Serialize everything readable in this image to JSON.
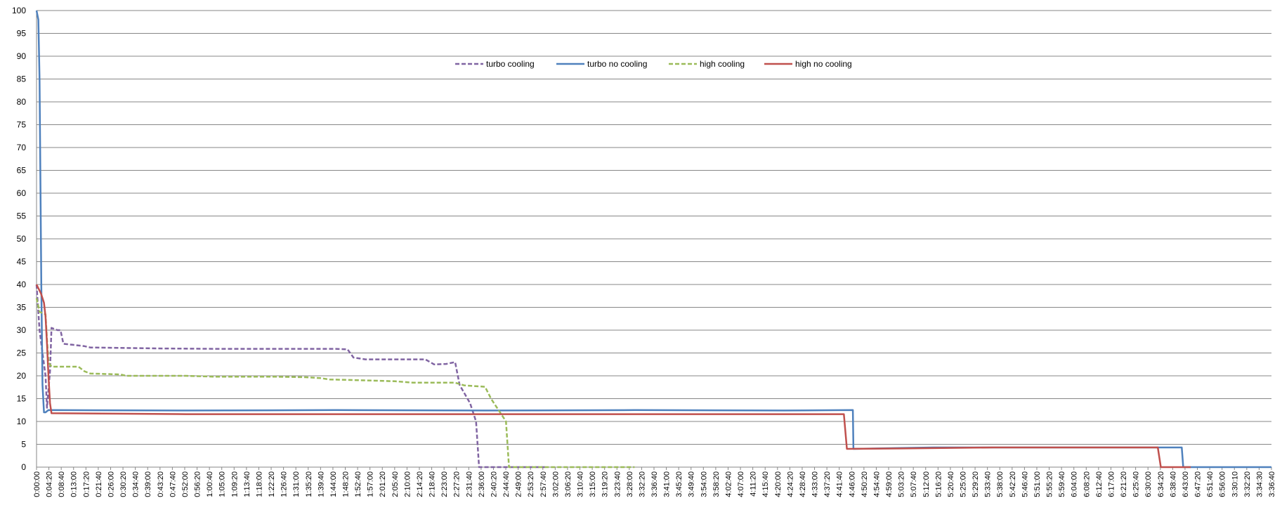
{
  "chart_data": {
    "type": "line",
    "title": "",
    "xlabel": "",
    "ylabel": "",
    "ylim": [
      0,
      100
    ],
    "y_ticks": [
      0,
      5,
      10,
      15,
      20,
      25,
      30,
      35,
      40,
      45,
      50,
      55,
      60,
      65,
      70,
      75,
      80,
      85,
      90,
      95,
      100
    ],
    "x_range_minutes": [
      0,
      413
    ],
    "x_tick_labels": [
      "0:00:00",
      "0:04:20",
      "0:08:40",
      "0:13:00",
      "0:17:20",
      "0:21:40",
      "0:26:00",
      "0:30:20",
      "0:34:40",
      "0:39:00",
      "0:43:20",
      "0:47:40",
      "0:52:00",
      "0:56:20",
      "1:00:40",
      "1:05:00",
      "1:09:20",
      "1:13:40",
      "1:18:00",
      "1:22:20",
      "1:26:40",
      "1:31:00",
      "1:35:20",
      "1:39:40",
      "1:44:00",
      "1:48:20",
      "1:52:40",
      "1:57:00",
      "2:01:20",
      "2:05:40",
      "2:10:00",
      "2:14:20",
      "2:18:40",
      "2:23:00",
      "2:27:20",
      "2:31:40",
      "2:36:00",
      "2:40:20",
      "2:44:40",
      "2:49:00",
      "2:53:20",
      "2:57:40",
      "3:02:00",
      "3:06:20",
      "3:10:40",
      "3:15:00",
      "3:19:20",
      "3:23:40",
      "3:28:00",
      "3:32:20",
      "3:36:40",
      "3:41:00",
      "3:45:20",
      "3:49:40",
      "3:54:00",
      "3:58:20",
      "4:02:40",
      "4:07:00",
      "4:11:20",
      "4:15:40",
      "4:20:00",
      "4:24:20",
      "4:28:40",
      "4:33:00",
      "4:37:20",
      "4:41:40",
      "4:46:00",
      "4:50:20",
      "4:54:40",
      "4:59:00",
      "5:03:20",
      "5:07:40",
      "5:12:00",
      "5:16:20",
      "5:20:40",
      "5:25:00",
      "5:29:20",
      "5:33:40",
      "5:38:00",
      "5:42:20",
      "5:46:40",
      "5:51:00",
      "5:55:20",
      "5:59:40",
      "6:04:00",
      "6:08:20",
      "6:12:40",
      "6:17:00",
      "6:21:20",
      "6:25:40",
      "6:30:00",
      "6:34:20",
      "6:38:40",
      "6:43:00",
      "6:47:20",
      "6:51:40",
      "6:56:00",
      "3:30:10",
      "3:32:20",
      "3:34:30",
      "3:36:40"
    ],
    "grid": true,
    "legend_position": "top-center",
    "series": [
      {
        "name": "turbo cooling",
        "color": "#8064A2",
        "dash": true,
        "points": [
          [
            0,
            40
          ],
          [
            1,
            30
          ],
          [
            2,
            25
          ],
          [
            3,
            20
          ],
          [
            3.5,
            13
          ],
          [
            4.5,
            21
          ],
          [
            5,
            30.5
          ],
          [
            7,
            30
          ],
          [
            8,
            30
          ],
          [
            9,
            27
          ],
          [
            12,
            26.8
          ],
          [
            16,
            26.5
          ],
          [
            18,
            26.2
          ],
          [
            40,
            26
          ],
          [
            60,
            25.9
          ],
          [
            80,
            25.9
          ],
          [
            100,
            25.9
          ],
          [
            104,
            25.8
          ],
          [
            106,
            24
          ],
          [
            110,
            23.6
          ],
          [
            130,
            23.6
          ],
          [
            133,
            22.5
          ],
          [
            137,
            22.6
          ],
          [
            140,
            23
          ],
          [
            141.5,
            18
          ],
          [
            145,
            14
          ],
          [
            147,
            10
          ],
          [
            148,
            0
          ],
          [
            170,
            0
          ]
        ]
      },
      {
        "name": "turbo no cooling",
        "color": "#4F81BD",
        "dash": false,
        "points": [
          [
            0,
            100
          ],
          [
            0.6,
            98
          ],
          [
            1,
            85
          ],
          [
            1.6,
            40
          ],
          [
            2,
            18
          ],
          [
            2.5,
            12
          ],
          [
            3,
            12
          ],
          [
            4,
            12.5
          ],
          [
            50,
            12.4
          ],
          [
            100,
            12.5
          ],
          [
            150,
            12.4
          ],
          [
            200,
            12.5
          ],
          [
            250,
            12.4
          ],
          [
            273,
            12.5
          ],
          [
            273.2,
            4
          ],
          [
            300,
            4.3
          ],
          [
            350,
            4.3
          ],
          [
            383,
            4.3
          ],
          [
            383.5,
            0
          ],
          [
            413,
            0
          ]
        ]
      },
      {
        "name": "high cooling",
        "color": "#9BBB59",
        "dash": true,
        "points": [
          [
            0,
            37
          ],
          [
            1,
            34
          ],
          [
            3,
            33.5
          ],
          [
            3.5,
            28
          ],
          [
            4,
            23
          ],
          [
            5,
            22
          ],
          [
            14,
            22
          ],
          [
            16,
            21
          ],
          [
            18,
            20.5
          ],
          [
            28,
            20.3
          ],
          [
            30,
            20
          ],
          [
            50,
            20
          ],
          [
            60,
            19.8
          ],
          [
            80,
            19.8
          ],
          [
            90,
            19.7
          ],
          [
            95,
            19.5
          ],
          [
            98,
            19.2
          ],
          [
            110,
            19
          ],
          [
            120,
            18.8
          ],
          [
            126,
            18.5
          ],
          [
            140,
            18.5
          ],
          [
            143,
            17.9
          ],
          [
            150,
            17.6
          ],
          [
            152,
            15
          ],
          [
            155,
            12
          ],
          [
            157,
            10
          ],
          [
            158,
            0
          ],
          [
            200,
            0
          ]
        ]
      },
      {
        "name": "high no cooling",
        "color": "#C0504D",
        "dash": false,
        "points": [
          [
            0,
            40
          ],
          [
            1.5,
            38
          ],
          [
            2.5,
            36
          ],
          [
            3,
            33
          ],
          [
            3.5,
            27
          ],
          [
            4,
            20
          ],
          [
            4.5,
            14
          ],
          [
            5,
            11.8
          ],
          [
            50,
            11.6
          ],
          [
            100,
            11.6
          ],
          [
            150,
            11.6
          ],
          [
            200,
            11.6
          ],
          [
            250,
            11.6
          ],
          [
            270,
            11.6
          ],
          [
            271,
            4
          ],
          [
            290,
            4.1
          ],
          [
            320,
            4.3
          ],
          [
            350,
            4.3
          ],
          [
            375,
            4.3
          ],
          [
            376,
            0
          ],
          [
            386,
            0
          ]
        ]
      }
    ]
  }
}
